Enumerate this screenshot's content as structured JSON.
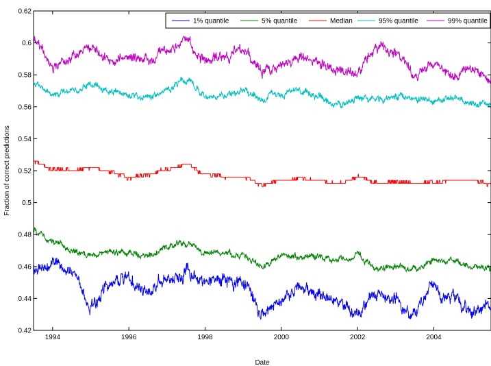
{
  "chart_data": {
    "type": "line",
    "title": "",
    "xlabel": "Date",
    "ylabel": "Fraction of correct predictions",
    "xlim": [
      1993.5,
      2005.5
    ],
    "ylim": [
      0.42,
      0.62
    ],
    "x_ticks": [
      1994,
      1996,
      1998,
      2000,
      2002,
      2004
    ],
    "x_tick_labels": [
      "1994",
      "1996",
      "1998",
      "2000",
      "2002",
      "2004"
    ],
    "y_ticks": [
      0.42,
      0.44,
      0.46,
      0.48,
      0.5,
      0.52,
      0.54,
      0.56,
      0.58,
      0.6,
      0.62
    ],
    "y_tick_labels": [
      "0.42",
      "0.44",
      "0.46",
      "0.48",
      "0.5",
      "0.52",
      "0.54",
      "0.56",
      "0.58",
      "0.6",
      "0.62"
    ],
    "grid": false,
    "legend_position": "top-right, horizontal",
    "x": [
      1993.5,
      1994.0,
      1994.5,
      1995.0,
      1995.5,
      1996.0,
      1996.5,
      1997.0,
      1997.5,
      1998.0,
      1998.5,
      1999.0,
      1999.5,
      2000.0,
      2000.5,
      2001.0,
      2001.5,
      2002.0,
      2002.5,
      2003.0,
      2003.5,
      2004.0,
      2004.5,
      2005.0,
      2005.5
    ],
    "series": [
      {
        "name": "1% quantile",
        "color": "#0000ff",
        "values": [
          0.458,
          0.462,
          0.457,
          0.434,
          0.45,
          0.452,
          0.444,
          0.453,
          0.457,
          0.449,
          0.452,
          0.452,
          0.43,
          0.44,
          0.447,
          0.444,
          0.437,
          0.431,
          0.445,
          0.441,
          0.43,
          0.447,
          0.44,
          0.433,
          0.436
        ]
      },
      {
        "name": "5% quantile",
        "color": "#008000",
        "values": [
          0.482,
          0.476,
          0.47,
          0.467,
          0.469,
          0.468,
          0.466,
          0.472,
          0.475,
          0.469,
          0.469,
          0.466,
          0.46,
          0.467,
          0.466,
          0.466,
          0.464,
          0.467,
          0.459,
          0.459,
          0.458,
          0.464,
          0.463,
          0.46,
          0.459
        ]
      },
      {
        "name": "Median",
        "color": "#ff0000",
        "values": [
          0.526,
          0.521,
          0.52,
          0.522,
          0.519,
          0.516,
          0.517,
          0.521,
          0.524,
          0.518,
          0.516,
          0.516,
          0.511,
          0.514,
          0.515,
          0.514,
          0.512,
          0.516,
          0.512,
          0.513,
          0.512,
          0.513,
          0.514,
          0.514,
          0.511
        ]
      },
      {
        "name": "95% quantile",
        "color": "#00bfbf",
        "values": [
          0.574,
          0.568,
          0.57,
          0.574,
          0.57,
          0.567,
          0.566,
          0.571,
          0.576,
          0.567,
          0.567,
          0.57,
          0.565,
          0.568,
          0.57,
          0.566,
          0.562,
          0.565,
          0.564,
          0.566,
          0.566,
          0.563,
          0.565,
          0.562,
          0.562
        ]
      },
      {
        "name": "99% quantile",
        "color": "#bf00bf",
        "values": [
          0.604,
          0.584,
          0.59,
          0.597,
          0.588,
          0.591,
          0.59,
          0.594,
          0.601,
          0.588,
          0.591,
          0.596,
          0.582,
          0.585,
          0.591,
          0.588,
          0.583,
          0.581,
          0.598,
          0.594,
          0.58,
          0.588,
          0.58,
          0.585,
          0.576
        ]
      }
    ]
  }
}
